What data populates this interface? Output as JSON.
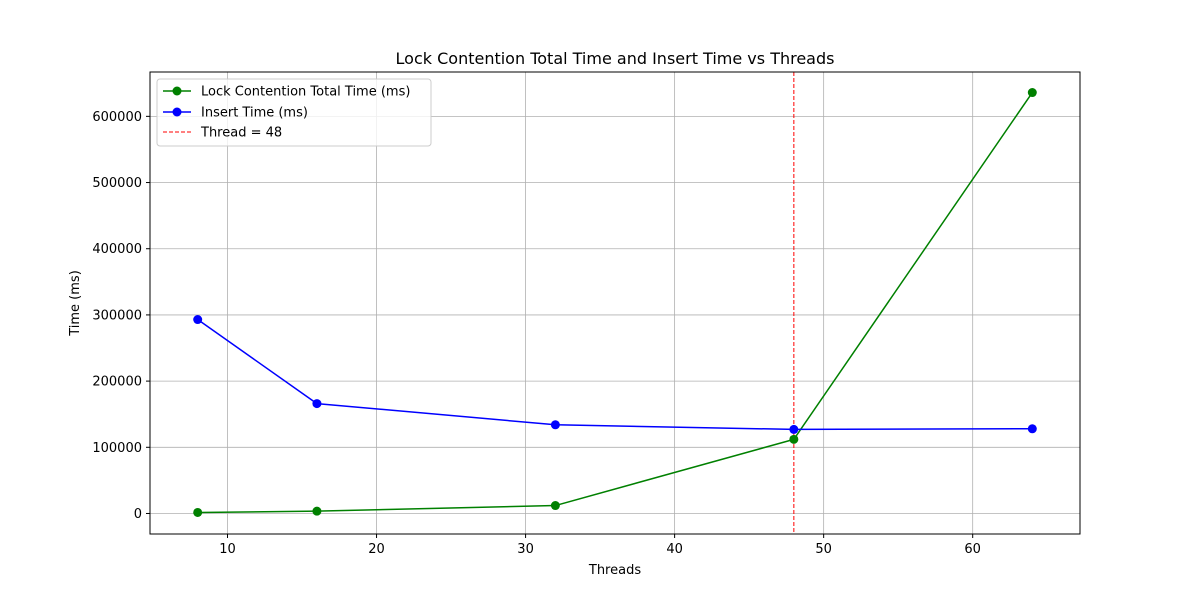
{
  "chart_data": {
    "type": "line",
    "title": "Lock Contention Total Time and Insert Time vs Threads",
    "xlabel": "Threads",
    "ylabel": "Time (ms)",
    "xlim": [
      4.8,
      67.2
    ],
    "ylim": [
      -31000,
      667000
    ],
    "xticks": [
      10,
      20,
      30,
      40,
      50,
      60
    ],
    "yticks": [
      0,
      100000,
      200000,
      300000,
      400000,
      500000,
      600000
    ],
    "grid": true,
    "legend_position": "top-left",
    "x": [
      8,
      16,
      32,
      48,
      64
    ],
    "series": [
      {
        "name": "Lock Contention Total Time (ms)",
        "color": "#008000",
        "marker": "circle",
        "values": [
          1500,
          3500,
          12000,
          112000,
          636000
        ]
      },
      {
        "name": "Insert Time (ms)",
        "color": "#0000ff",
        "marker": "circle",
        "values": [
          293000,
          166000,
          134000,
          127000,
          128000
        ]
      }
    ],
    "reference_lines": [
      {
        "name": "Thread = 48",
        "orientation": "vertical",
        "x": 48,
        "color": "#ff0000",
        "style": "dashed"
      }
    ]
  }
}
